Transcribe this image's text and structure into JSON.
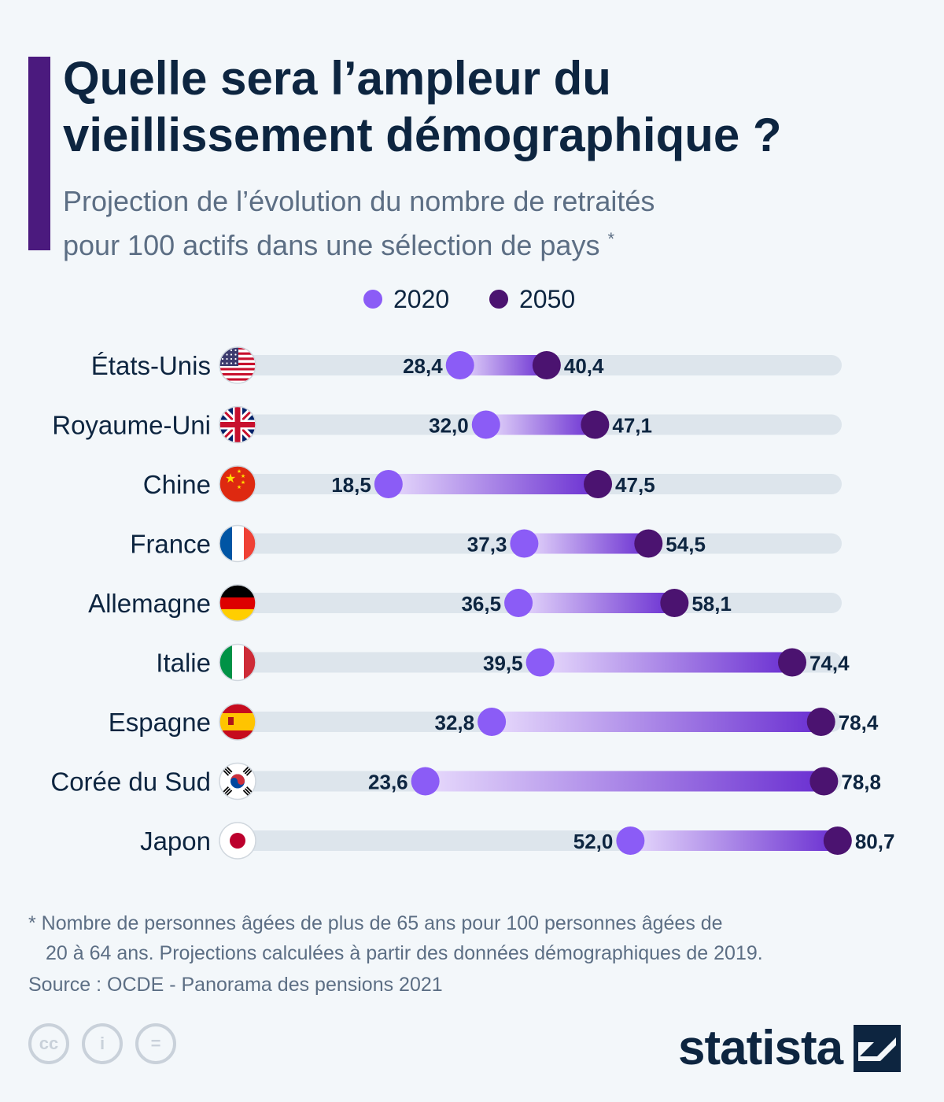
{
  "header": {
    "title_line1": "Quelle sera l’ampleur du",
    "title_line2": "vieillissement démographique ?",
    "subtitle_line1": "Projection de l’évolution du nombre de retraités",
    "subtitle_line2": "pour 100 actifs dans une sélection de pays",
    "subtitle_marker": "*"
  },
  "legend": {
    "items": [
      {
        "label": "2020",
        "color": "#8b5cf6"
      },
      {
        "label": "2050",
        "color": "#4b1370"
      }
    ]
  },
  "chart_data": {
    "type": "dumbbell",
    "categories": [
      "États-Unis",
      "Royaume-Uni",
      "Chine",
      "France",
      "Allemagne",
      "Italie",
      "Espagne",
      "Corée du Sud",
      "Japon"
    ],
    "flags": [
      "us-flag-icon",
      "uk-flag-icon",
      "china-flag-icon",
      "france-flag-icon",
      "germany-flag-icon",
      "italy-flag-icon",
      "spain-flag-icon",
      "south-korea-flag-icon",
      "japan-flag-icon"
    ],
    "series": [
      {
        "name": "2020",
        "values": [
          28.4,
          32.0,
          18.5,
          37.3,
          36.5,
          39.5,
          32.8,
          23.6,
          52.0
        ],
        "labels": [
          "28,4",
          "32,0",
          "18,5",
          "37,3",
          "36,5",
          "39,5",
          "32,8",
          "23,6",
          "52,0"
        ],
        "color": "#8b5cf6"
      },
      {
        "name": "2050",
        "values": [
          40.4,
          47.1,
          47.5,
          54.5,
          58.1,
          74.4,
          78.4,
          78.8,
          80.7
        ],
        "labels": [
          "40,4",
          "47,1",
          "47,5",
          "54,5",
          "58,1",
          "74,4",
          "78,4",
          "78,8",
          "80,7"
        ],
        "color": "#4b1370"
      }
    ],
    "xlim": [
      0,
      85
    ],
    "colors": {
      "track": "#dde5ec",
      "gradient_start": "#e7dafc",
      "gradient_end": "#6a2fd1"
    }
  },
  "footnote": {
    "line1": "* Nombre de personnes âgées de plus de 65 ans pour 100 personnes âgées de",
    "line2": "20 à 64 ans. Projections calculées à partir des données démographiques de 2019."
  },
  "source": "Source : OCDE - Panorama des pensions 2021",
  "footer": {
    "cc_icons": [
      "cc-icon",
      "attribution-icon",
      "no-derivatives-icon"
    ],
    "cc_glyphs": [
      "cc",
      "i",
      "="
    ],
    "brand": "statista"
  }
}
